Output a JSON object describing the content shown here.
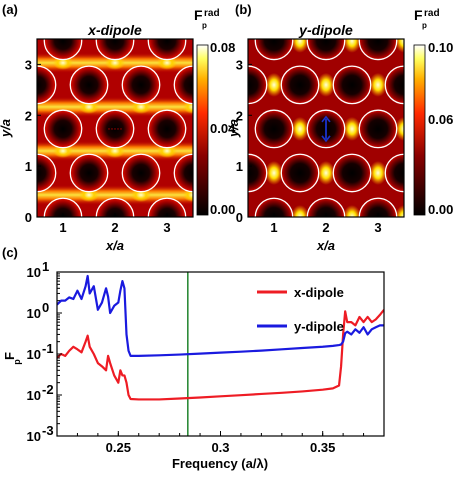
{
  "panels": {
    "a": {
      "panel_label": "(a)",
      "title": "x-dipole",
      "xlabel": "x/a",
      "ylabel": "y/a",
      "colorbar_label_main": "F",
      "colorbar_label_sub": "p",
      "colorbar_label_sup": "rad",
      "colorbar_ticks": [
        "0.08",
        "0.04",
        "0.00"
      ],
      "xticks": [
        "1",
        "2",
        "3"
      ],
      "yticks": [
        "0",
        "1",
        "2",
        "3"
      ]
    },
    "b": {
      "panel_label": "(b)",
      "title": "y-dipole",
      "xlabel": "x/a",
      "ylabel": "y/a",
      "colorbar_label_main": "F",
      "colorbar_label_sub": "p",
      "colorbar_label_sup": "rad",
      "colorbar_ticks": [
        "0.10",
        "0.06",
        "0.00"
      ],
      "xticks": [
        "1",
        "2",
        "3"
      ],
      "yticks": [
        "0",
        "1",
        "2",
        "3"
      ]
    },
    "c": {
      "panel_label": "(c)",
      "xlabel": "Frequency (a/λ)",
      "ylabel_main": "F",
      "ylabel_sub": "p",
      "xticks": [
        "0.25",
        "0.3",
        "0.35"
      ],
      "yticks": [
        {
          "base": "10",
          "exp": "1"
        },
        {
          "base": "10",
          "exp": "0"
        },
        {
          "base": "10",
          "exp": "-1"
        },
        {
          "base": "10",
          "exp": "-2"
        },
        {
          "base": "10",
          "exp": "-3"
        }
      ]
    }
  },
  "colors": {
    "x_dipole": "#ee1c24",
    "y_dipole": "#1a1adf",
    "marker_line": "#2e8b3a",
    "arrow": "#1a33cc"
  },
  "chart_data": [
    {
      "type": "heatmap",
      "title": "x-dipole",
      "xlabel": "x/a",
      "ylabel": "y/a",
      "xlim": [
        0.5,
        3.5
      ],
      "ylim": [
        0,
        3.5
      ],
      "colorbar_range": [
        0.0,
        0.08
      ],
      "colorbar_label": "Fp rad",
      "colormap": "black-red-yellow-white",
      "hole_centers": [
        [
          1,
          0
        ],
        [
          2,
          0
        ],
        [
          3,
          0
        ],
        [
          0.5,
          0.866
        ],
        [
          1.5,
          0.866
        ],
        [
          2.5,
          0.866
        ],
        [
          3.5,
          0.866
        ],
        [
          1,
          1.732
        ],
        [
          2,
          1.732
        ],
        [
          3,
          1.732
        ],
        [
          0.5,
          2.598
        ],
        [
          1.5,
          2.598
        ],
        [
          2.5,
          2.598
        ],
        [
          3.5,
          2.598
        ],
        [
          1,
          3.464
        ],
        [
          2,
          3.464
        ],
        [
          3,
          3.464
        ]
      ],
      "hole_radius": 0.36,
      "dipole_position": [
        2,
        1.732
      ],
      "dipole_orientation": "x"
    },
    {
      "type": "heatmap",
      "title": "y-dipole",
      "xlabel": "x/a",
      "ylabel": "y/a",
      "xlim": [
        0.5,
        3.5
      ],
      "ylim": [
        0,
        3.5
      ],
      "colorbar_range": [
        0.0,
        0.1
      ],
      "colorbar_label": "Fp rad",
      "colormap": "black-red-yellow-white",
      "hole_centers": [
        [
          1,
          0
        ],
        [
          2,
          0
        ],
        [
          3,
          0
        ],
        [
          0.5,
          0.866
        ],
        [
          1.5,
          0.866
        ],
        [
          2.5,
          0.866
        ],
        [
          3.5,
          0.866
        ],
        [
          1,
          1.732
        ],
        [
          2,
          1.732
        ],
        [
          3,
          1.732
        ],
        [
          0.5,
          2.598
        ],
        [
          1.5,
          2.598
        ],
        [
          2.5,
          2.598
        ],
        [
          3.5,
          2.598
        ],
        [
          1,
          3.464
        ],
        [
          2,
          3.464
        ],
        [
          3,
          3.464
        ]
      ],
      "hole_radius": 0.36,
      "dipole_position": [
        2,
        1.732
      ],
      "dipole_orientation": "y"
    },
    {
      "type": "line",
      "xlabel": "Frequency (a/λ)",
      "ylabel": "Fp",
      "xlim": [
        0.22,
        0.38
      ],
      "ylim": [
        0.001,
        10
      ],
      "yscale": "log",
      "legend_position": "top-right",
      "vertical_marker_x": 0.284,
      "series": [
        {
          "name": "x-dipole",
          "color": "#ee1c24",
          "x": [
            0.22,
            0.222,
            0.224,
            0.226,
            0.228,
            0.23,
            0.232,
            0.234,
            0.235,
            0.236,
            0.238,
            0.24,
            0.242,
            0.244,
            0.245,
            0.246,
            0.248,
            0.25,
            0.251,
            0.252,
            0.253,
            0.254,
            0.255,
            0.256,
            0.26,
            0.27,
            0.28,
            0.29,
            0.3,
            0.31,
            0.32,
            0.33,
            0.34,
            0.35,
            0.355,
            0.358,
            0.359,
            0.36,
            0.361,
            0.362,
            0.364,
            0.366,
            0.368,
            0.37,
            0.372,
            0.374,
            0.376,
            0.378,
            0.38
          ],
          "y": [
            0.08,
            0.1,
            0.09,
            0.12,
            0.15,
            0.13,
            0.11,
            0.2,
            0.28,
            0.15,
            0.1,
            0.06,
            0.05,
            0.04,
            0.09,
            0.06,
            0.03,
            0.02,
            0.04,
            0.03,
            0.03,
            0.02,
            0.01,
            0.008,
            0.0078,
            0.0078,
            0.0082,
            0.0087,
            0.0093,
            0.0099,
            0.0106,
            0.0113,
            0.0122,
            0.0135,
            0.0145,
            0.017,
            0.05,
            0.3,
            1.1,
            0.6,
            0.6,
            0.5,
            0.8,
            0.6,
            0.8,
            0.6,
            0.7,
            0.9,
            1.2
          ]
        },
        {
          "name": "y-dipole",
          "color": "#1a1adf",
          "x": [
            0.22,
            0.222,
            0.224,
            0.226,
            0.228,
            0.23,
            0.232,
            0.234,
            0.235,
            0.236,
            0.238,
            0.24,
            0.242,
            0.244,
            0.245,
            0.246,
            0.248,
            0.25,
            0.251,
            0.252,
            0.253,
            0.254,
            0.255,
            0.256,
            0.26,
            0.27,
            0.28,
            0.29,
            0.3,
            0.31,
            0.32,
            0.33,
            0.34,
            0.35,
            0.355,
            0.358,
            0.359,
            0.36,
            0.361,
            0.362,
            0.364,
            0.366,
            0.368,
            0.37,
            0.372,
            0.374,
            0.376,
            0.378,
            0.38
          ],
          "y": [
            1.6,
            2.0,
            2.0,
            2.4,
            2.2,
            3.5,
            2.2,
            4.5,
            8.0,
            3.0,
            4.5,
            1.2,
            1.8,
            4.0,
            2.5,
            1.0,
            1.5,
            1.8,
            3.5,
            6.0,
            4.0,
            0.3,
            0.12,
            0.09,
            0.09,
            0.093,
            0.097,
            0.102,
            0.108,
            0.114,
            0.121,
            0.13,
            0.14,
            0.15,
            0.158,
            0.165,
            0.17,
            0.2,
            0.32,
            0.35,
            0.3,
            0.4,
            0.33,
            0.45,
            0.3,
            0.4,
            0.45,
            0.5,
            0.5
          ]
        }
      ]
    }
  ]
}
